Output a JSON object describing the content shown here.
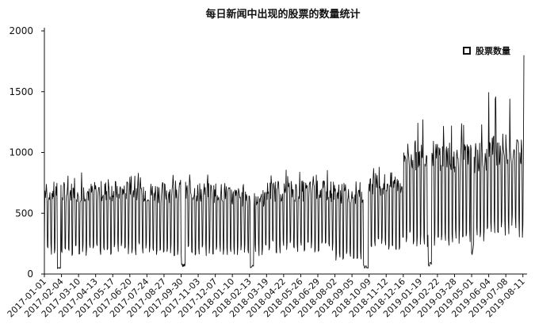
{
  "chart_data": {
    "type": "line",
    "title": "每日新闻中出现的股票的数量统计",
    "xlabel": "",
    "ylabel": "",
    "ylim": [
      0,
      2000
    ],
    "yticks": [
      "0",
      "500",
      "1000",
      "1500",
      "2000"
    ],
    "x_ticks": [
      "2017-01-01",
      "2017-02-04",
      "2017-03-10",
      "2017-04-13",
      "2017-05-17",
      "2017-06-20",
      "2017-07-24",
      "2017-08-27",
      "2017-09-30",
      "2017-11-03",
      "2017-12-07",
      "2018-01-10",
      "2018-02-13",
      "2018-03-19",
      "2018-04-22",
      "2018-05-26",
      "2018-06-29",
      "2018-08-02",
      "2018-09-05",
      "2018-10-09",
      "2018-11-12",
      "2018-12-16",
      "2019-01-19",
      "2019-02-22",
      "2019-03-28",
      "2019-05-01",
      "2019-06-04",
      "2019-07-08",
      "2019-08-11"
    ],
    "legend": {
      "position": "top-right",
      "marker": "hollow-square"
    },
    "series": [
      {
        "name": "股票数量",
        "segments": [
          {
            "start": "2017-01-01",
            "end": "2017-04-12",
            "weekday_level": 690,
            "weekend_level": 200,
            "peak": 850
          },
          {
            "start": "2017-04-13",
            "end": "2017-07-23",
            "weekday_level": 700,
            "weekend_level": 210,
            "peak": 840
          },
          {
            "start": "2017-07-24",
            "end": "2017-12-31",
            "weekday_level": 690,
            "weekend_level": 200,
            "peak": 830
          },
          {
            "start": "2018-01-01",
            "end": "2018-03-18",
            "weekday_level": 650,
            "weekend_level": 200,
            "peak": 750
          },
          {
            "start": "2018-03-19",
            "end": "2018-08-01",
            "weekday_level": 700,
            "weekend_level": 230,
            "peak": 860
          },
          {
            "start": "2018-08-02",
            "end": "2018-10-08",
            "weekday_level": 680,
            "weekend_level": 150,
            "peak": 760
          },
          {
            "start": "2018-10-09",
            "end": "2018-12-15",
            "weekday_level": 760,
            "weekend_level": 250,
            "peak": 880
          },
          {
            "start": "2018-12-16",
            "end": "2019-03-27",
            "weekday_level": 1000,
            "weekend_level": 300,
            "peak": 1270
          },
          {
            "start": "2019-03-28",
            "end": "2019-06-03",
            "weekday_level": 980,
            "weekend_level": 320,
            "peak": 1300
          },
          {
            "start": "2019-06-04",
            "end": "2019-08-13",
            "weekday_level": 1050,
            "weekend_level": 400,
            "peak": 1540
          }
        ],
        "holiday_dips": [
          {
            "start": "2017-01-27",
            "end": "2017-02-02",
            "value": 50
          },
          {
            "start": "2017-10-01",
            "end": "2017-10-08",
            "value": 70
          },
          {
            "start": "2018-02-15",
            "end": "2018-02-21",
            "value": 60
          },
          {
            "start": "2018-09-28",
            "end": "2018-10-07",
            "value": 60
          },
          {
            "start": "2019-02-04",
            "end": "2019-02-10",
            "value": 80
          },
          {
            "start": "2019-05-01",
            "end": "2019-05-04",
            "value": 180
          }
        ],
        "final": {
          "date": "2019-08-13",
          "value": 1800
        }
      }
    ]
  }
}
